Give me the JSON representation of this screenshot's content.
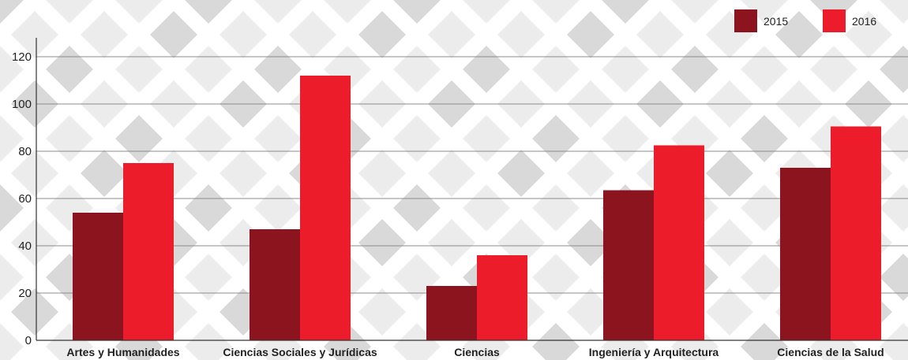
{
  "chart_data": {
    "type": "bar",
    "title": "",
    "xlabel": "",
    "ylabel": "",
    "ylim": [
      0,
      120
    ],
    "yticks": [
      0,
      20,
      40,
      60,
      80,
      100,
      120
    ],
    "grid": true,
    "legend_position": "top-right",
    "categories": [
      "Artes y Humanidades",
      "Ciencias Sociales y Jurídicas",
      "Ciencias",
      "Ingeniería y Arquitectura",
      "Ciencias de la Salud"
    ],
    "series": [
      {
        "name": "2015",
        "color": "#8b141e",
        "values": [
          54,
          47,
          23,
          63.5,
          73
        ]
      },
      {
        "name": "2016",
        "color": "#ed1c2b",
        "values": [
          75,
          112,
          36,
          82.5,
          90.5
        ]
      }
    ]
  }
}
